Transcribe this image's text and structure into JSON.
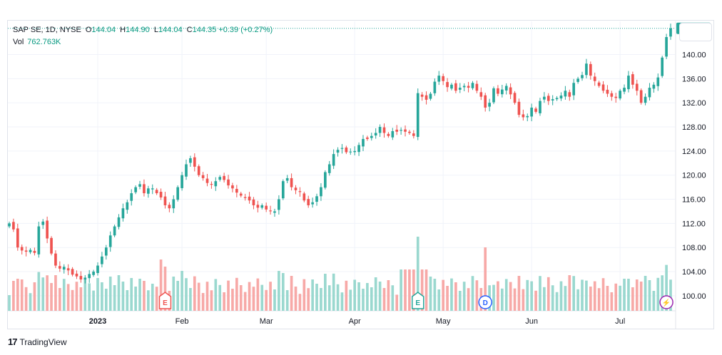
{
  "legend": {
    "symbol": "SAP SE, 1D, NYSE",
    "open_label": "O",
    "open": "144.04",
    "high_label": "H",
    "high": "144.90",
    "low_label": "L",
    "low": "144.04",
    "close_label": "C",
    "close": "144.35",
    "change": "+0.39 (+0.27%)",
    "vol_label": "Vol",
    "vol": "762.763K"
  },
  "brand": {
    "name": "TradingView",
    "logo": "17"
  },
  "colors": {
    "up": "#26a69a",
    "down": "#ef5350",
    "up_vol": "#9ad8cf",
    "down_vol": "#f7a9a7",
    "price_tag": "#26a69a"
  },
  "chart_data": {
    "type": "candlestick",
    "y_ticks": [
      "100.00",
      "104.00",
      "108.00",
      "112.00",
      "116.00",
      "120.00",
      "124.00",
      "128.00",
      "132.00",
      "136.00",
      "140.00"
    ],
    "ylim": [
      97.5,
      145.5
    ],
    "x_ticks": [
      "2023",
      "Feb",
      "Mar",
      "Apr",
      "May",
      "Jun",
      "Jul"
    ],
    "last_price": "144.35",
    "events": [
      {
        "label": "E",
        "type": "earnings",
        "color": "#ef5350",
        "date_index": 37
      },
      {
        "label": "E",
        "type": "earnings",
        "color": "#26a69a",
        "date_index": 97
      },
      {
        "label": "D",
        "type": "dividend",
        "color": "#2962ff",
        "date_index": 113
      },
      {
        "label": "⚡",
        "type": "split",
        "color": "#9c27b0",
        "date_index": 156
      }
    ],
    "close": [
      112.0,
      111.0,
      108.0,
      107.5,
      107.3,
      107.6,
      107.1,
      111.5,
      112.3,
      109.5,
      107.0,
      105.0,
      104.5,
      104.8,
      104.2,
      103.5,
      103.2,
      102.7,
      103.0,
      103.6,
      104.0,
      105.0,
      106.5,
      108.0,
      110.0,
      111.5,
      113.0,
      114.5,
      115.5,
      117.0,
      118.0,
      118.5,
      117.0,
      117.8,
      117.8,
      117.0,
      116.3,
      115.0,
      114.5,
      116.0,
      118.0,
      120.0,
      121.8,
      122.8,
      121.4,
      120.0,
      119.5,
      118.7,
      118.4,
      119.0,
      119.7,
      119.2,
      118.3,
      117.8,
      117.1,
      116.6,
      116.2,
      115.8,
      115.0,
      114.6,
      115.0,
      114.3,
      114.0,
      114.0,
      116.0,
      119.0,
      119.5,
      118.0,
      117.5,
      117.2,
      115.8,
      115.0,
      115.5,
      116.5,
      118.0,
      120.5,
      121.8,
      123.5,
      124.2,
      124.5,
      123.8,
      123.9,
      124.0,
      125.0,
      126.0,
      126.0,
      126.5,
      127.0,
      128.0,
      127.0,
      126.5,
      127.3,
      127.2,
      127.5,
      127.2,
      127.0,
      126.5,
      133.6,
      133.0,
      132.5,
      133.5,
      135.5,
      136.5,
      135.6,
      134.6,
      135.0,
      134.0,
      134.5,
      134.8,
      134.5,
      135.3,
      134.0,
      133.0,
      131.2,
      132.0,
      134.4,
      133.5,
      134.2,
      134.8,
      133.4,
      132.0,
      130.0,
      129.6,
      129.8,
      131.2,
      130.5,
      132.3,
      133.0,
      132.3,
      132.6,
      132.8,
      133.2,
      134.0,
      133.0,
      135.3,
      136.0,
      136.6,
      138.5,
      136.5,
      135.6,
      134.8,
      134.0,
      133.5,
      133.0,
      132.8,
      134.0,
      134.5,
      136.5,
      135.0,
      134.0,
      132.0,
      133.0,
      134.5,
      135.0,
      136.2,
      139.5,
      142.9,
      144.35
    ],
    "volume_note": "relative volume bars along the bottom of the price pane"
  }
}
